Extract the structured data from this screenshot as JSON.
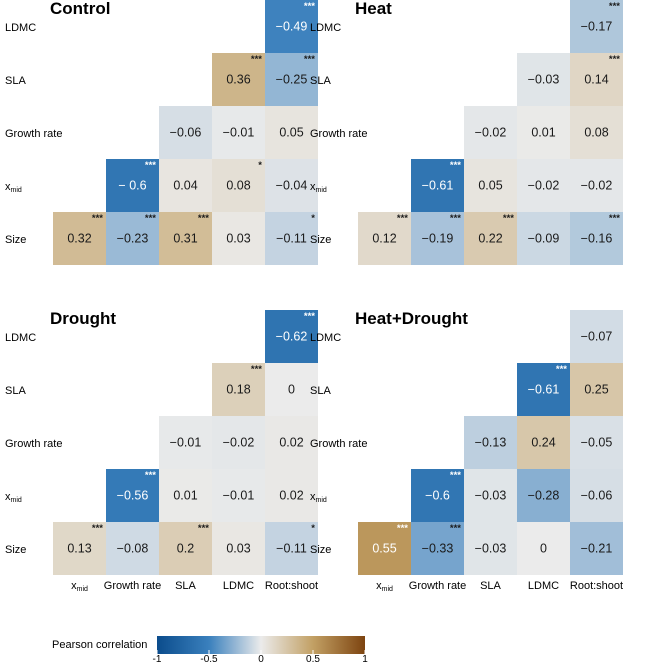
{
  "chart_data": {
    "type": "heatmap",
    "row_labels": [
      "LDMC",
      "SLA",
      "Growth rate",
      "x_mid",
      "Size"
    ],
    "column_labels": [
      "x_mid",
      "Growth rate",
      "SLA",
      "LDMC",
      "Root:shoot"
    ],
    "x_mid_label": {
      "base": "x",
      "subscript": "mid"
    },
    "legend": {
      "title": "Pearson correlation",
      "ticks": [
        "-1",
        "-0.5",
        "0",
        "0.5",
        "1"
      ],
      "range": [
        -1,
        1
      ],
      "colors": [
        "#0b4c8c",
        "#3a80bd",
        "#ebebeb",
        "#c2a064",
        "#7d4410"
      ]
    },
    "panels": [
      {
        "title": "Control",
        "values": [
          [
            null,
            null,
            null,
            null,
            -0.49
          ],
          [
            null,
            null,
            null,
            0.36,
            -0.25
          ],
          [
            null,
            null,
            -0.06,
            -0.01,
            0.05
          ],
          [
            null,
            -0.6,
            0.04,
            0.08,
            -0.04
          ],
          [
            0.32,
            -0.23,
            0.31,
            0.03,
            -0.11
          ]
        ],
        "labels": [
          [
            null,
            null,
            null,
            null,
            "−0.49"
          ],
          [
            null,
            null,
            null,
            "0.36",
            "−0.25"
          ],
          [
            null,
            null,
            "−0.06",
            "−0.01",
            "0.05"
          ],
          [
            null,
            "− 0.6",
            "0.04",
            "0.08",
            "−0.04"
          ],
          [
            "0.32",
            "−0.23",
            "0.31",
            "0.03",
            "−0.11"
          ]
        ],
        "stars": [
          [
            null,
            null,
            null,
            null,
            "***"
          ],
          [
            null,
            null,
            null,
            "***",
            "***"
          ],
          [
            null,
            null,
            "",
            "",
            ""
          ],
          [
            null,
            "***",
            "",
            "*",
            ""
          ],
          [
            "***",
            "***",
            "***",
            "",
            "*"
          ]
        ]
      },
      {
        "title": "Heat",
        "values": [
          [
            null,
            null,
            null,
            null,
            -0.17
          ],
          [
            null,
            null,
            null,
            -0.03,
            0.14
          ],
          [
            null,
            null,
            -0.02,
            0.01,
            0.08
          ],
          [
            null,
            -0.61,
            0.05,
            -0.02,
            -0.02
          ],
          [
            0.12,
            -0.19,
            0.22,
            -0.09,
            -0.16
          ]
        ],
        "labels": [
          [
            null,
            null,
            null,
            null,
            "−0.17"
          ],
          [
            null,
            null,
            null,
            "−0.03",
            "0.14"
          ],
          [
            null,
            null,
            "−0.02",
            "0.01",
            "0.08"
          ],
          [
            null,
            "−0.61",
            "0.05",
            "−0.02",
            "−0.02"
          ],
          [
            "0.12",
            "−0.19",
            "0.22",
            "−0.09",
            "−0.16"
          ]
        ],
        "stars": [
          [
            null,
            null,
            null,
            null,
            "***"
          ],
          [
            null,
            null,
            null,
            "",
            "***"
          ],
          [
            null,
            null,
            "",
            "",
            ""
          ],
          [
            null,
            "***",
            "",
            "",
            ""
          ],
          [
            "***",
            "***",
            "***",
            "",
            "***"
          ]
        ]
      },
      {
        "title": "Drought",
        "values": [
          [
            null,
            null,
            null,
            null,
            -0.62
          ],
          [
            null,
            null,
            null,
            0.18,
            0
          ],
          [
            null,
            null,
            -0.01,
            -0.02,
            0.02
          ],
          [
            null,
            -0.56,
            0.01,
            -0.01,
            0.02
          ],
          [
            0.13,
            -0.08,
            0.2,
            0.03,
            -0.11
          ]
        ],
        "labels": [
          [
            null,
            null,
            null,
            null,
            "−0.62"
          ],
          [
            null,
            null,
            null,
            "0.18",
            "0"
          ],
          [
            null,
            null,
            "−0.01",
            "−0.02",
            "0.02"
          ],
          [
            null,
            "−0.56",
            "0.01",
            "−0.01",
            "0.02"
          ],
          [
            "0.13",
            "−0.08",
            "0.2",
            "0.03",
            "−0.11"
          ]
        ],
        "stars": [
          [
            null,
            null,
            null,
            null,
            "***"
          ],
          [
            null,
            null,
            null,
            "***",
            ""
          ],
          [
            null,
            null,
            "",
            "",
            ""
          ],
          [
            null,
            "***",
            "",
            "",
            ""
          ],
          [
            "***",
            "",
            "***",
            "",
            "*"
          ]
        ]
      },
      {
        "title": "Heat+Drought",
        "values": [
          [
            null,
            null,
            null,
            null,
            -0.07
          ],
          [
            null,
            null,
            null,
            -0.61,
            0.25
          ],
          [
            null,
            null,
            -0.13,
            0.24,
            -0.05
          ],
          [
            null,
            -0.6,
            -0.03,
            -0.28,
            -0.06
          ],
          [
            0.55,
            -0.33,
            -0.03,
            0,
            -0.21
          ]
        ],
        "labels": [
          [
            null,
            null,
            null,
            null,
            "−0.07"
          ],
          [
            null,
            null,
            null,
            "−0.61",
            "0.25"
          ],
          [
            null,
            null,
            "−0.13",
            "0.24",
            "−0.05"
          ],
          [
            null,
            "−0.6",
            "−0.03",
            "−0.28",
            "−0.06"
          ],
          [
            "0.55",
            "−0.33",
            "−0.03",
            "0",
            "−0.21"
          ]
        ],
        "stars": [
          [
            null,
            null,
            null,
            null,
            ""
          ],
          [
            null,
            null,
            null,
            "***",
            ""
          ],
          [
            null,
            null,
            "",
            "",
            ""
          ],
          [
            null,
            "***",
            "",
            "",
            ""
          ],
          [
            "***",
            "***",
            "",
            "",
            ""
          ]
        ]
      }
    ]
  }
}
